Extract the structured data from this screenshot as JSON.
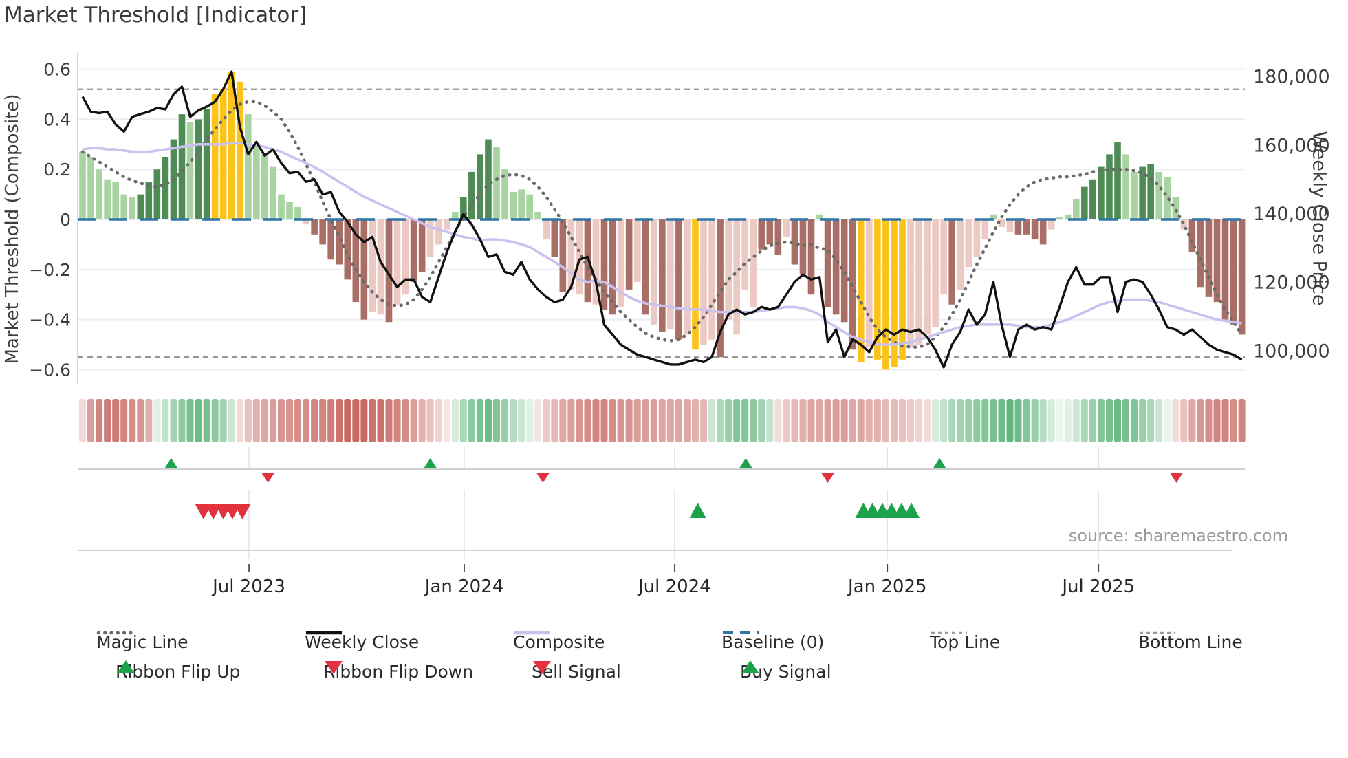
{
  "title": "Market Threshold [Indicator]",
  "source_text": "source: sharemaestro.com",
  "axes": {
    "left_title": "Market Threshold (Composite)",
    "right_title": "Weekly Close Price",
    "left_ticks": [
      "0.6",
      "0.4",
      "0.2",
      "0",
      "−0.2",
      "−0.4",
      "−0.6"
    ],
    "left_tick_values": [
      0.6,
      0.4,
      0.2,
      0,
      -0.2,
      -0.4,
      -0.6
    ],
    "right_ticks": [
      "180,000",
      "160,000",
      "140,000",
      "120,000",
      "100,000"
    ],
    "right_tick_values": [
      180000,
      160000,
      140000,
      120000,
      100000
    ],
    "x_ticks": [
      "Jul 2023",
      "Jan 2024",
      "Jul 2024",
      "Jan 2025",
      "Jul 2025"
    ],
    "x_tick_weeks": [
      20.1,
      46.1,
      71.5,
      97.2,
      122.7
    ]
  },
  "legend": {
    "row1": [
      {
        "label": "Magic Line",
        "swatch": "dotted-gray-line"
      },
      {
        "label": "Weekly Close",
        "swatch": "solid-black-line"
      },
      {
        "label": "Composite",
        "swatch": "solid-purple-line"
      },
      {
        "label": "Baseline (0)",
        "swatch": "dashed-blue-line"
      },
      {
        "label": "Top Line",
        "swatch": "dashed-gray-line"
      },
      {
        "label": "Bottom Line",
        "swatch": "dashed-gray-line"
      }
    ],
    "row2": [
      {
        "label": "Ribbon Flip Up",
        "swatch": "green-up-triangle"
      },
      {
        "label": "Ribbon Flip Down",
        "swatch": "red-down-triangle"
      },
      {
        "label": "Sell Signal",
        "swatch": "red-down-triangle"
      },
      {
        "label": "Buy Signal",
        "swatch": "green-up-triangle"
      }
    ]
  },
  "colors": {
    "bar_light_green": "#a7d4a0",
    "bar_dark_green": "#4f8c55",
    "bar_gold": "#fcc41a",
    "bar_light_pink": "#edc9c3",
    "bar_dark_red": "#a96e66",
    "weekly_close": "#111111",
    "composite_line": "#c9c2ee",
    "magic_line": "#6a6a6a",
    "baseline": "#2f75a8",
    "top_bottom_line": "#8f8f8f",
    "signal_green": "#1ca24a",
    "signal_red": "#e2323e",
    "ribbon_green": "#2f9e53",
    "ribbon_red": "#bf4f48",
    "grid": "#e9eef4",
    "spine": "#cccccc",
    "row_line": "#d0d0d0",
    "panel_grid": "#e3e3e3",
    "tick": "#444444"
  },
  "chart_data": {
    "type": "bar",
    "subtype": "composite-indicator-with-overlays",
    "n_weeks": 141,
    "x_range_dates": [
      "Feb 2023",
      "Nov 2025"
    ],
    "ylim_left": [
      -0.66,
      0.66
    ],
    "ylim_right_labels": [
      100000,
      180000
    ],
    "price_axis": {
      "base": 138400,
      "per_left_unit": 73000
    },
    "top_line_value": 0.52,
    "bottom_line_value": -0.55,
    "baseline_value": 0,
    "bars": {
      "name": "Market Threshold (Composite) histogram",
      "values": [
        0.27,
        0.25,
        0.2,
        0.16,
        0.15,
        0.1,
        0.09,
        0.1,
        0.15,
        0.2,
        0.25,
        0.32,
        0.42,
        0.39,
        0.4,
        0.44,
        0.5,
        0.52,
        0.59,
        0.55,
        0.42,
        0.3,
        0.26,
        0.21,
        0.1,
        0.07,
        0.05,
        -0.02,
        -0.06,
        -0.1,
        -0.16,
        -0.18,
        -0.24,
        -0.33,
        -0.4,
        -0.37,
        -0.38,
        -0.41,
        -0.34,
        -0.3,
        -0.25,
        -0.21,
        -0.15,
        -0.1,
        -0.04,
        0.03,
        0.09,
        0.19,
        0.26,
        0.32,
        0.29,
        0.2,
        0.11,
        0.12,
        0.1,
        0.03,
        -0.08,
        -0.15,
        -0.29,
        -0.28,
        -0.3,
        -0.33,
        -0.34,
        -0.36,
        -0.38,
        -0.35,
        -0.28,
        -0.25,
        -0.38,
        -0.42,
        -0.45,
        -0.44,
        -0.48,
        -0.46,
        -0.52,
        -0.5,
        -0.48,
        -0.55,
        -0.4,
        -0.46,
        -0.28,
        -0.35,
        -0.12,
        -0.1,
        -0.14,
        -0.07,
        -0.18,
        -0.22,
        -0.3,
        0.02,
        -0.35,
        -0.38,
        -0.41,
        -0.52,
        -0.57,
        -0.51,
        -0.56,
        -0.6,
        -0.59,
        -0.56,
        -0.51,
        -0.5,
        -0.46,
        -0.43,
        -0.3,
        -0.34,
        -0.28,
        -0.19,
        -0.15,
        -0.08,
        0.02,
        -0.03,
        -0.05,
        -0.06,
        -0.06,
        -0.08,
        -0.1,
        -0.04,
        0.01,
        0.02,
        0.08,
        0.13,
        0.16,
        0.21,
        0.26,
        0.31,
        0.26,
        0.19,
        0.21,
        0.22,
        0.19,
        0.17,
        0.09,
        -0.04,
        -0.13,
        -0.27,
        -0.31,
        -0.33,
        -0.4,
        -0.42,
        -0.46
      ],
      "color_keys": [
        "lg",
        "lg",
        "lg",
        "lg",
        "lg",
        "lg",
        "lg",
        "dg",
        "dg",
        "dg",
        "dg",
        "dg",
        "dg",
        "lg",
        "dg",
        "dg",
        "au",
        "au",
        "au",
        "au",
        "lg",
        "lg",
        "lg",
        "lg",
        "lg",
        "lg",
        "lg",
        "lp",
        "dr",
        "dr",
        "dr",
        "dr",
        "dr",
        "dr",
        "dr",
        "lp",
        "lp",
        "dr",
        "lp",
        "lp",
        "dr",
        "dr",
        "lp",
        "lp",
        "lp",
        "lg",
        "dg",
        "dg",
        "dg",
        "dg",
        "lg",
        "lg",
        "lg",
        "lg",
        "lg",
        "lg",
        "lp",
        "dr",
        "dr",
        "lp",
        "lp",
        "dr",
        "lp",
        "dr",
        "dr",
        "lp",
        "dr",
        "lp",
        "dr",
        "lp",
        "dr",
        "lp",
        "dr",
        "lp",
        "au",
        "lp",
        "lp",
        "dr",
        "lp",
        "lp",
        "lp",
        "lp",
        "dr",
        "dr",
        "dr",
        "lp",
        "dr",
        "dr",
        "dr",
        "lg",
        "dr",
        "dr",
        "dr",
        "dr",
        "au",
        "lp",
        "au",
        "au",
        "au",
        "au",
        "lp",
        "lp",
        "lp",
        "lp",
        "lp",
        "dr",
        "lp",
        "lp",
        "lp",
        "lp",
        "lg",
        "lp",
        "lp",
        "dr",
        "dr",
        "dr",
        "dr",
        "lp",
        "lg",
        "lg",
        "lg",
        "dg",
        "dg",
        "dg",
        "dg",
        "dg",
        "lg",
        "lg",
        "dg",
        "dg",
        "lg",
        "lg",
        "lg",
        "lp",
        "dr",
        "dr",
        "dr",
        "dr",
        "dr",
        "dr",
        "dr"
      ]
    },
    "series": [
      {
        "name": "Weekly Close",
        "type": "line",
        "axis": "price",
        "values": [
          174200,
          169800,
          169400,
          169800,
          166100,
          164000,
          168300,
          169100,
          169800,
          170900,
          170500,
          174900,
          177100,
          168300,
          170200,
          171300,
          172700,
          176400,
          181500,
          165400,
          157400,
          161000,
          157000,
          158800,
          154800,
          151900,
          152300,
          149400,
          150100,
          145700,
          146400,
          140600,
          137700,
          134000,
          131800,
          133300,
          126000,
          122300,
          118700,
          120900,
          120900,
          115800,
          114300,
          121600,
          128900,
          134800,
          139900,
          136900,
          132600,
          127500,
          128200,
          123100,
          122300,
          126000,
          120900,
          118000,
          115800,
          114300,
          115000,
          118700,
          126700,
          127500,
          120200,
          107700,
          104800,
          101900,
          100400,
          99000,
          98300,
          97500,
          96800,
          96100,
          96100,
          96800,
          97500,
          96800,
          98300,
          105600,
          110700,
          112100,
          110700,
          111400,
          112900,
          112100,
          112900,
          116500,
          120200,
          122300,
          120900,
          121600,
          102600,
          106300,
          98300,
          103400,
          101900,
          99700,
          104100,
          106300,
          104800,
          106300,
          105600,
          106300,
          104100,
          100400,
          95300,
          101900,
          105600,
          112100,
          107700,
          110700,
          120200,
          107700,
          98300,
          106300,
          107700,
          106300,
          107000,
          106300,
          112900,
          120200,
          124500,
          119400,
          119400,
          121600,
          121600,
          111400,
          120200,
          120900,
          120200,
          116500,
          112100,
          107000,
          106300,
          104800,
          106300,
          104100,
          101900,
          100400,
          99700,
          99000,
          97500
        ]
      },
      {
        "name": "Composite",
        "type": "line",
        "axis": "left",
        "values": [
          0.28,
          0.285,
          0.285,
          0.28,
          0.28,
          0.275,
          0.27,
          0.27,
          0.27,
          0.275,
          0.28,
          0.285,
          0.29,
          0.295,
          0.3,
          0.3,
          0.3,
          0.3,
          0.305,
          0.305,
          0.3,
          0.295,
          0.29,
          0.28,
          0.27,
          0.255,
          0.24,
          0.225,
          0.21,
          0.19,
          0.17,
          0.15,
          0.13,
          0.11,
          0.09,
          0.075,
          0.06,
          0.045,
          0.03,
          0.015,
          0.0,
          -0.015,
          -0.03,
          -0.04,
          -0.05,
          -0.06,
          -0.07,
          -0.075,
          -0.085,
          -0.08,
          -0.08,
          -0.085,
          -0.09,
          -0.1,
          -0.11,
          -0.13,
          -0.15,
          -0.17,
          -0.19,
          -0.215,
          -0.24,
          -0.25,
          -0.245,
          -0.25,
          -0.27,
          -0.29,
          -0.31,
          -0.325,
          -0.335,
          -0.34,
          -0.345,
          -0.35,
          -0.355,
          -0.36,
          -0.36,
          -0.36,
          -0.365,
          -0.37,
          -0.37,
          -0.37,
          -0.37,
          -0.37,
          -0.365,
          -0.36,
          -0.355,
          -0.35,
          -0.35,
          -0.355,
          -0.365,
          -0.38,
          -0.41,
          -0.43,
          -0.45,
          -0.47,
          -0.48,
          -0.49,
          -0.5,
          -0.5,
          -0.5,
          -0.495,
          -0.49,
          -0.48,
          -0.47,
          -0.46,
          -0.45,
          -0.44,
          -0.43,
          -0.425,
          -0.42,
          -0.42,
          -0.42,
          -0.42,
          -0.42,
          -0.425,
          -0.43,
          -0.43,
          -0.43,
          -0.42,
          -0.41,
          -0.4,
          -0.385,
          -0.37,
          -0.355,
          -0.34,
          -0.33,
          -0.325,
          -0.32,
          -0.32,
          -0.32,
          -0.325,
          -0.33,
          -0.34,
          -0.35,
          -0.36,
          -0.37,
          -0.38,
          -0.39,
          -0.4,
          -0.405,
          -0.41,
          -0.415
        ]
      },
      {
        "name": "Magic Line",
        "type": "line",
        "axis": "left",
        "style": "dotted",
        "values": [
          0.27,
          0.25,
          0.23,
          0.21,
          0.19,
          0.17,
          0.155,
          0.145,
          0.135,
          0.13,
          0.14,
          0.16,
          0.19,
          0.23,
          0.27,
          0.32,
          0.36,
          0.4,
          0.435,
          0.46,
          0.47,
          0.47,
          0.455,
          0.43,
          0.4,
          0.35,
          0.29,
          0.22,
          0.15,
          0.07,
          0.0,
          -0.07,
          -0.14,
          -0.2,
          -0.25,
          -0.29,
          -0.32,
          -0.34,
          -0.345,
          -0.34,
          -0.32,
          -0.28,
          -0.23,
          -0.17,
          -0.11,
          -0.05,
          0.01,
          0.06,
          0.1,
          0.14,
          0.16,
          0.175,
          0.18,
          0.175,
          0.16,
          0.13,
          0.09,
          0.04,
          -0.01,
          -0.07,
          -0.13,
          -0.19,
          -0.24,
          -0.29,
          -0.33,
          -0.37,
          -0.4,
          -0.43,
          -0.455,
          -0.47,
          -0.48,
          -0.485,
          -0.48,
          -0.46,
          -0.43,
          -0.39,
          -0.34,
          -0.29,
          -0.24,
          -0.21,
          -0.175,
          -0.15,
          -0.125,
          -0.105,
          -0.095,
          -0.09,
          -0.095,
          -0.105,
          -0.1,
          -0.115,
          -0.12,
          -0.16,
          -0.21,
          -0.27,
          -0.33,
          -0.39,
          -0.44,
          -0.47,
          -0.49,
          -0.505,
          -0.51,
          -0.51,
          -0.5,
          -0.47,
          -0.43,
          -0.38,
          -0.32,
          -0.25,
          -0.18,
          -0.115,
          -0.05,
          0.01,
          0.06,
          0.1,
          0.13,
          0.15,
          0.16,
          0.165,
          0.17,
          0.17,
          0.175,
          0.18,
          0.19,
          0.195,
          0.2,
          0.2,
          0.2,
          0.195,
          0.185,
          0.165,
          0.135,
          0.09,
          0.04,
          -0.02,
          -0.09,
          -0.16,
          -0.23,
          -0.3,
          -0.36,
          -0.41,
          -0.46
        ]
      }
    ],
    "ribbon": [
      -0.2,
      -0.55,
      -0.7,
      -0.75,
      -0.75,
      -0.7,
      -0.65,
      -0.6,
      -0.45,
      0.15,
      0.3,
      0.45,
      0.55,
      0.65,
      0.7,
      0.65,
      0.55,
      0.45,
      0.25,
      -0.2,
      -0.35,
      -0.45,
      -0.5,
      -0.55,
      -0.6,
      -0.6,
      -0.65,
      -0.65,
      -0.7,
      -0.7,
      -0.75,
      -0.8,
      -0.85,
      -0.85,
      -0.85,
      -0.8,
      -0.8,
      -0.75,
      -0.7,
      -0.65,
      -0.55,
      -0.45,
      -0.35,
      -0.25,
      -0.15,
      0.2,
      0.4,
      0.55,
      0.65,
      0.7,
      0.6,
      0.5,
      0.35,
      0.25,
      0.15,
      -0.15,
      -0.3,
      -0.4,
      -0.5,
      -0.55,
      -0.6,
      -0.65,
      -0.7,
      -0.7,
      -0.65,
      -0.6,
      -0.6,
      -0.55,
      -0.55,
      -0.55,
      -0.5,
      -0.5,
      -0.5,
      -0.5,
      -0.45,
      -0.4,
      0.25,
      0.4,
      0.5,
      0.6,
      0.6,
      0.55,
      0.45,
      0.3,
      -0.2,
      -0.3,
      -0.4,
      -0.45,
      -0.5,
      -0.5,
      -0.55,
      -0.55,
      -0.55,
      -0.5,
      -0.5,
      -0.45,
      -0.45,
      -0.4,
      -0.4,
      -0.35,
      -0.3,
      -0.25,
      -0.2,
      0.2,
      0.3,
      0.4,
      0.45,
      0.5,
      0.55,
      0.6,
      0.65,
      0.7,
      0.75,
      0.7,
      0.6,
      0.5,
      0.35,
      0.2,
      0.1,
      0.15,
      0.25,
      0.4,
      0.5,
      0.6,
      0.65,
      0.7,
      0.65,
      0.6,
      0.5,
      0.4,
      0.25,
      0.1,
      -0.2,
      -0.35,
      -0.5,
      -0.6,
      -0.65,
      -0.7,
      -0.7,
      -0.65,
      -0.7
    ],
    "signals": {
      "ribbon_flip_up_weeks": [
        10.7,
        42.0,
        80.1,
        103.5
      ],
      "ribbon_flip_down_weeks": [
        22.4,
        55.6,
        90.0,
        132.1
      ],
      "sell_signal_weeks": [
        14.6,
        15.8,
        17.0,
        18.1,
        19.3
      ],
      "buy_signal_weeks": [
        74.3,
        94.3,
        95.4,
        96.6,
        97.7,
        98.9,
        100.1
      ]
    }
  }
}
